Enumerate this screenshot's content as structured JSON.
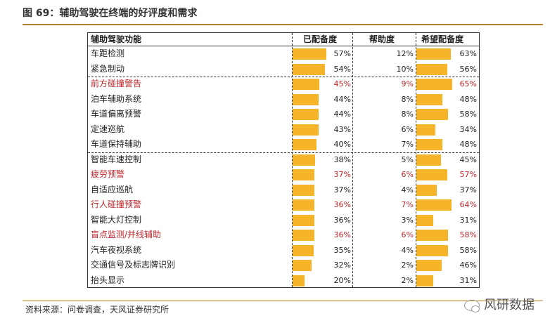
{
  "figure": {
    "title": "图 69：辅助驾驶在终端的好评度和需求",
    "source": "资料来源：问卷调查，天风证券研究所",
    "watermark": "风研数据"
  },
  "colors": {
    "bar": "#f6b42a",
    "highlight_text": "#c0272d",
    "rule": "#b8832f"
  },
  "chart_data": {
    "type": "table",
    "columns": [
      "辅助驾驶功能",
      "已配备度",
      "帮助度",
      "希望配备度"
    ],
    "rows": [
      {
        "name": "车距检测",
        "equipped": 57,
        "helpful": 12,
        "desired": 63,
        "highlight": false,
        "labels": [
          "57%",
          "12%",
          "63%"
        ]
      },
      {
        "name": "紧急制动",
        "equipped": 54,
        "helpful": 10,
        "desired": 56,
        "highlight": false,
        "labels": [
          "54%",
          "10%",
          "56%"
        ]
      },
      {
        "name": "前方碰撞警告",
        "equipped": 45,
        "helpful": 9,
        "desired": 65,
        "highlight": true,
        "labels": [
          "45%",
          "9%",
          "65%"
        ]
      },
      {
        "name": "泊车辅助系统",
        "equipped": 44,
        "helpful": 8,
        "desired": 48,
        "highlight": false,
        "labels": [
          "44%",
          "8%",
          "48%"
        ]
      },
      {
        "name": "车道偏离预警",
        "equipped": 44,
        "helpful": 8,
        "desired": 58,
        "highlight": false,
        "labels": [
          "44%",
          "8%",
          "58%"
        ]
      },
      {
        "name": "定速巡航",
        "equipped": 43,
        "helpful": 6,
        "desired": 34,
        "highlight": false,
        "labels": [
          "43%",
          "6%",
          "34%"
        ]
      },
      {
        "name": "车道保持辅助",
        "equipped": 40,
        "helpful": 7,
        "desired": 48,
        "highlight": false,
        "labels": [
          "40%",
          "7%",
          "48%"
        ]
      },
      {
        "name": "智能车速控制",
        "equipped": 38,
        "helpful": 5,
        "desired": 45,
        "highlight": false,
        "labels": [
          "38%",
          "5%",
          "45%"
        ]
      },
      {
        "name": "疲劳预警",
        "equipped": 37,
        "helpful": 6,
        "desired": 57,
        "highlight": true,
        "labels": [
          "37%",
          "6%",
          "57%"
        ]
      },
      {
        "name": "自适应巡航",
        "equipped": 37,
        "helpful": 4,
        "desired": 37,
        "highlight": false,
        "labels": [
          "37%",
          "4%",
          "37%"
        ]
      },
      {
        "name": "行人碰撞预警",
        "equipped": 36,
        "helpful": 7,
        "desired": 64,
        "highlight": true,
        "labels": [
          "36%",
          "7%",
          "64%"
        ]
      },
      {
        "name": "智能大灯控制",
        "equipped": 36,
        "helpful": 3,
        "desired": 31,
        "highlight": false,
        "labels": [
          "36%",
          "3%",
          "31%"
        ]
      },
      {
        "name": "盲点监测/并线辅助",
        "equipped": 36,
        "helpful": 6,
        "desired": 58,
        "highlight": true,
        "labels": [
          "36%",
          "6%",
          "58%"
        ]
      },
      {
        "name": "汽车夜视系统",
        "equipped": 35,
        "helpful": 4,
        "desired": 58,
        "highlight": false,
        "labels": [
          "35%",
          "4%",
          "58%"
        ]
      },
      {
        "name": "交通信号及标志牌识别",
        "equipped": 32,
        "helpful": 2,
        "desired": 46,
        "highlight": false,
        "labels": [
          "32%",
          "2%",
          "46%"
        ]
      },
      {
        "name": "抬头显示",
        "equipped": 20,
        "helpful": 2,
        "desired": 31,
        "highlight": false,
        "labels": [
          "20%",
          "2%",
          "31%"
        ]
      }
    ],
    "group_breaks_after": [
      1,
      6
    ],
    "bar_max": 100
  }
}
